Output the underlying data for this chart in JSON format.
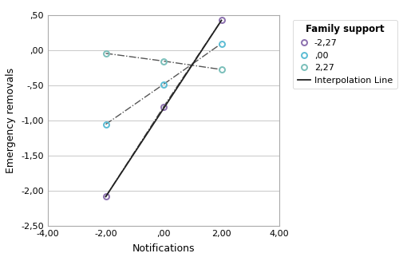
{
  "xlabel": "Notifications",
  "ylabel": "Emergency removals",
  "xlim": [
    -4,
    4
  ],
  "ylim": [
    -2.5,
    0.5
  ],
  "xticks": [
    -4,
    -2,
    0,
    2,
    4
  ],
  "yticks": [
    -2.5,
    -2.0,
    -1.5,
    -1.0,
    -0.5,
    0.0,
    0.5
  ],
  "xtick_labels": [
    "-4,00",
    "-2,00",
    ",00",
    "2,00",
    "4,00"
  ],
  "ytick_labels": [
    "-2,50",
    "-2,00",
    "-1,50",
    "-1,00",
    "-,50",
    ",00",
    ",50"
  ],
  "legend_title": "Family support",
  "legend_labels": [
    "-2,27",
    ",00",
    "2,27",
    "Interpolation Line"
  ],
  "series": {
    "low": {
      "x": [
        -2,
        0,
        2
      ],
      "y": [
        -2.08,
        -0.8,
        0.43
      ],
      "color": "#8b6fae",
      "label": "-2,27"
    },
    "mid": {
      "x": [
        -2,
        0,
        2
      ],
      "y": [
        -1.05,
        -0.48,
        0.1
      ],
      "color": "#5bbcd4",
      "label": ",00"
    },
    "high": {
      "x": [
        -2,
        0,
        2
      ],
      "y": [
        -0.04,
        -0.15,
        -0.27
      ],
      "color": "#7abfba",
      "label": "2,27"
    }
  },
  "interpolation_line": {
    "x": [
      -2,
      2
    ],
    "y": [
      -2.08,
      0.43
    ],
    "color": "#222222"
  },
  "background_color": "#ffffff",
  "grid_color": "#c8c8c8",
  "border_color": "#aaaaaa"
}
